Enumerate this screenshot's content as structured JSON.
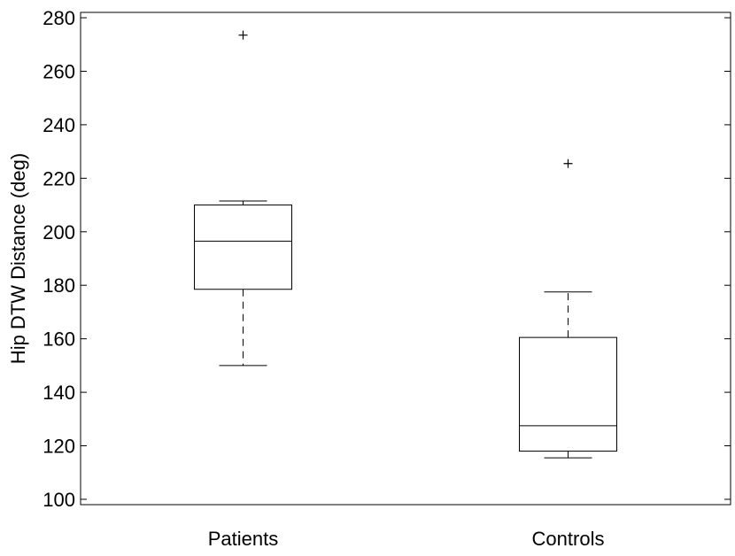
{
  "chart_data": {
    "type": "box",
    "title": "",
    "xlabel": "",
    "ylabel": "Hip DTW Distance (deg)",
    "ylim": [
      98,
      282
    ],
    "yticks": [
      100,
      120,
      140,
      160,
      180,
      200,
      220,
      240,
      260,
      280
    ],
    "grid": false,
    "categories": [
      "Patients",
      "Controls"
    ],
    "boxes": [
      {
        "whisker_low": 150,
        "q1": 178.5,
        "median": 196.5,
        "q3": 210,
        "whisker_high": 211.5,
        "outliers": [
          273.5
        ]
      },
      {
        "whisker_low": 115.5,
        "q1": 118,
        "median": 127.5,
        "q3": 160.5,
        "whisker_high": 177.5,
        "outliers": [
          225.5
        ]
      }
    ]
  }
}
